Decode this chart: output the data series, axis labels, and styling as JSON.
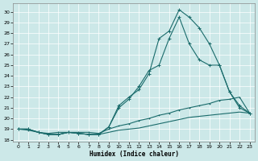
{
  "xlabel": "Humidex (Indice chaleur)",
  "bg_color": "#cce8e8",
  "grid_color": "#bbbbbb",
  "line_color": "#1a6b6b",
  "xlim": [
    -0.5,
    23.5
  ],
  "ylim": [
    17.8,
    30.8
  ],
  "yticks": [
    18,
    19,
    20,
    21,
    22,
    23,
    24,
    25,
    26,
    27,
    28,
    29,
    30
  ],
  "xticks": [
    0,
    1,
    2,
    3,
    4,
    5,
    6,
    7,
    8,
    9,
    10,
    11,
    12,
    13,
    14,
    15,
    16,
    17,
    18,
    19,
    20,
    21,
    22,
    23
  ],
  "curve1_x": [
    0,
    1,
    2,
    3,
    4,
    5,
    6,
    7,
    8,
    9,
    10,
    11,
    12,
    13,
    14,
    15,
    16,
    17,
    18,
    19,
    20,
    21,
    22,
    23
  ],
  "curve1_y": [
    19.0,
    19.0,
    18.7,
    18.5,
    18.5,
    18.7,
    18.6,
    18.5,
    18.5,
    19.2,
    21.2,
    22.0,
    22.7,
    24.2,
    27.5,
    28.2,
    30.2,
    29.5,
    28.5,
    27.0,
    25.0,
    22.5,
    21.0,
    20.5
  ],
  "curve2_x": [
    0,
    1,
    2,
    3,
    4,
    5,
    6,
    7,
    8,
    9,
    10,
    11,
    12,
    13,
    14,
    15,
    16,
    17,
    18,
    19,
    20,
    21,
    22,
    23
  ],
  "curve2_y": [
    19.0,
    19.0,
    18.7,
    18.5,
    18.5,
    18.7,
    18.6,
    18.5,
    18.5,
    19.2,
    21.0,
    21.8,
    23.0,
    24.5,
    25.0,
    27.5,
    29.5,
    27.0,
    25.5,
    25.0,
    25.0,
    22.5,
    21.2,
    20.5
  ],
  "curve3_x": [
    0,
    1,
    2,
    3,
    4,
    5,
    6,
    7,
    8,
    9,
    10,
    11,
    12,
    13,
    14,
    15,
    16,
    17,
    18,
    19,
    20,
    21,
    22,
    23
  ],
  "curve3_y": [
    19.0,
    18.9,
    18.7,
    18.6,
    18.7,
    18.7,
    18.7,
    18.7,
    18.6,
    19.0,
    19.3,
    19.5,
    19.8,
    20.0,
    20.3,
    20.5,
    20.8,
    21.0,
    21.2,
    21.4,
    21.7,
    21.8,
    22.0,
    20.5
  ],
  "curve4_x": [
    0,
    1,
    2,
    3,
    4,
    5,
    6,
    7,
    8,
    9,
    10,
    11,
    12,
    13,
    14,
    15,
    16,
    17,
    18,
    19,
    20,
    21,
    22,
    23
  ],
  "curve4_y": [
    19.0,
    19.0,
    18.7,
    18.5,
    18.5,
    18.7,
    18.6,
    18.5,
    18.5,
    18.7,
    18.9,
    19.0,
    19.1,
    19.3,
    19.5,
    19.7,
    19.9,
    20.1,
    20.2,
    20.3,
    20.4,
    20.5,
    20.6,
    20.5
  ]
}
